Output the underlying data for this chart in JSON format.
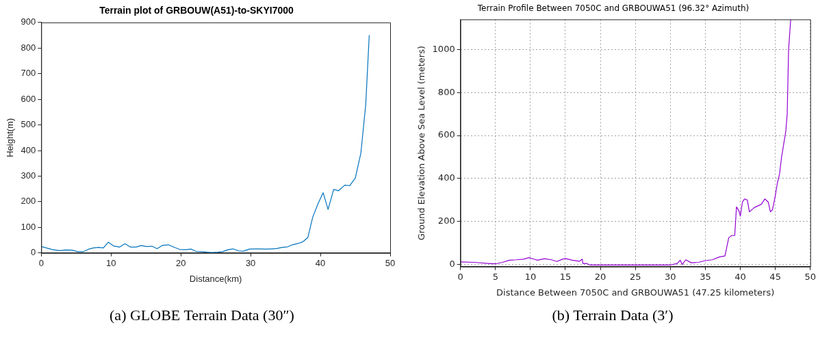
{
  "chart_data": [
    {
      "type": "line",
      "title": "Terrain plot of GRBOUW(A51)-to-SKYI7000",
      "xlabel": "Distance(km)",
      "ylabel": "Height(m)",
      "xlim": [
        0,
        50
      ],
      "xticks": [
        0,
        10,
        20,
        30,
        40,
        50
      ],
      "ylim": [
        0,
        900
      ],
      "yticks": [
        0,
        100,
        200,
        300,
        400,
        500,
        600,
        700,
        800,
        900
      ],
      "grid": false,
      "annotations": [
        "(a)  GLOBE Terrain Data (30″)"
      ],
      "series": [
        {
          "color": "#0072bd",
          "x": [
            0,
            1,
            1.5,
            2.6,
            3.5,
            4.4,
            5.2,
            6,
            6.8,
            7.5,
            8.2,
            8.9,
            9.6,
            10.4,
            11.2,
            12,
            12.8,
            13.6,
            14.3,
            15.1,
            15.9,
            16.6,
            17.4,
            18.2,
            19,
            19.8,
            20.7,
            21.5,
            22.2,
            23,
            23.8,
            24.5,
            25.3,
            26,
            26.8,
            27.5,
            28.3,
            29,
            29.8,
            30.5,
            31.3,
            32.2,
            33,
            33.7,
            34.5,
            35.3,
            36,
            36.8,
            37.5,
            38.2,
            38.9,
            39.7,
            40.4,
            41.1,
            41.9,
            42.6,
            43.5,
            44.2,
            45,
            45.8,
            46.5,
            47
          ],
          "values": [
            25,
            18,
            14,
            9,
            12,
            11,
            5,
            5,
            15,
            20,
            22,
            20,
            42,
            27,
            23,
            36,
            23,
            23,
            29,
            25,
            26,
            17,
            30,
            32,
            23,
            14,
            13,
            15,
            6,
            5,
            3,
            2,
            3,
            5,
            13,
            16,
            8,
            7,
            15,
            16,
            16,
            15,
            16,
            17,
            22,
            24,
            32,
            37,
            44,
            60,
            140,
            195,
            235,
            170,
            248,
            243,
            265,
            263,
            292,
            390,
            580,
            850
          ]
        }
      ]
    },
    {
      "type": "line",
      "title": "Terrain Profile Between 7050C and GRBOUWA51 (96.32° Azimuth)",
      "xlabel": "Distance Between 7050C and GRBOUWA51 (47.25 kilometers)",
      "ylabel": "Ground Elevation Above Sea Level (meters)",
      "xlim": [
        0,
        50
      ],
      "xticks": [
        0,
        5,
        10,
        15,
        20,
        25,
        30,
        35,
        40,
        45,
        50
      ],
      "ylim": [
        -10,
        1140
      ],
      "yticks": [
        0,
        200,
        400,
        600,
        800,
        1000
      ],
      "grid": true,
      "annotations": [
        "(b)  Terrain Data (3′)"
      ],
      "series": [
        {
          "color": "#9400d3",
          "x": [
            0,
            2,
            4,
            5,
            6,
            7,
            8,
            9,
            9.8,
            10.5,
            11,
            12,
            13,
            13.8,
            14.5,
            15,
            16,
            17,
            17.4,
            17.5,
            18,
            18.5,
            30,
            31,
            31.4,
            31.7,
            32.2,
            33,
            34,
            35,
            36,
            37,
            37.8,
            38.35,
            38.8,
            39.2,
            39.45,
            39.8,
            40,
            40.3,
            40.6,
            41,
            41.3,
            42,
            43,
            43.5,
            44,
            44.3,
            44.6,
            45,
            45.3,
            45.6,
            45.9,
            46.3,
            46.5,
            46.7,
            46.9,
            47.2
          ],
          "values": [
            12,
            10,
            5,
            3,
            10,
            20,
            22,
            25,
            32,
            25,
            20,
            27,
            22,
            14,
            24,
            28,
            20,
            15,
            25,
            5,
            5,
            -2,
            -2,
            5,
            20,
            0,
            22,
            8,
            10,
            18,
            22,
            35,
            40,
            125,
            135,
            135,
            268,
            250,
            225,
            290,
            305,
            300,
            245,
            265,
            280,
            305,
            290,
            245,
            255,
            320,
            380,
            420,
            500,
            580,
            620,
            700,
            1000,
            1140
          ]
        }
      ]
    }
  ]
}
